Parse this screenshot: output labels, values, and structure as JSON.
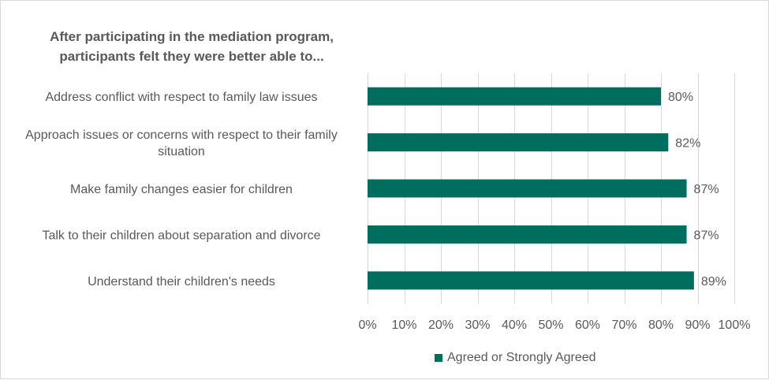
{
  "chart_data": {
    "type": "bar",
    "orientation": "horizontal",
    "title": "After participating in the mediation program, participants felt they were better able to...",
    "categories": [
      "Address conflict with respect to family law issues",
      "Approach issues or concerns with respect to their family situation",
      "Make family changes easier for children",
      "Talk to their children about separation and divorce",
      "Understand their children's needs"
    ],
    "category_lines": [
      [
        "Address conflict with respect to family law issues"
      ],
      [
        "Approach issues or concerns with respect to their family",
        "situation"
      ],
      [
        "Make family changes easier for children"
      ],
      [
        "Talk to their children about separation and divorce"
      ],
      [
        "Understand their children's needs"
      ]
    ],
    "series": [
      {
        "name": "Agreed or Strongly Agreed",
        "values": [
          80,
          82,
          87,
          87,
          89
        ]
      }
    ],
    "data_labels": [
      "80%",
      "82%",
      "87%",
      "87%",
      "89%"
    ],
    "xlim": [
      0,
      100
    ],
    "x_ticks": [
      "0%",
      "10%",
      "20%",
      "30%",
      "40%",
      "50%",
      "60%",
      "70%",
      "80%",
      "90%",
      "100%"
    ],
    "grid": true,
    "legend_position": "bottom",
    "colors": {
      "bar": "#006e5f",
      "grid": "#d9d9d9",
      "text": "#595959",
      "title": "#595959"
    }
  }
}
